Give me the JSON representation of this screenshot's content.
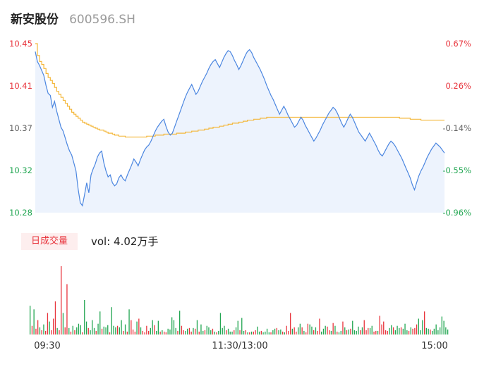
{
  "header": {
    "name": "新安股份",
    "code": "600596.SH"
  },
  "volume_panel": {
    "tab_label": "日成交量",
    "vol_text": "vol: 4.02万手"
  },
  "colors": {
    "up": "#e8343c",
    "down": "#22a652",
    "price_line": "#4b86e0",
    "avg_line": "#f4b73a",
    "area_fill": "#edf3fd",
    "neutral_label": "#666666"
  },
  "chart_data": [
    {
      "type": "line",
      "y_ticks": [
        10.45,
        10.41,
        10.37,
        10.32,
        10.28
      ],
      "pct_ticks": [
        "0.67%",
        "0.26%",
        "-0.14%",
        "-0.55%",
        "-0.96%"
      ],
      "ylim": [
        10.28,
        10.45
      ],
      "x_ticks": [
        "09:30",
        "11:30/13:00",
        "15:00"
      ],
      "series": [
        {
          "key": "price",
          "values": [
            10.442,
            10.432,
            10.428,
            10.423,
            10.418,
            10.408,
            10.4,
            10.398,
            10.386,
            10.392,
            10.382,
            10.374,
            10.366,
            10.362,
            10.355,
            10.348,
            10.342,
            10.338,
            10.33,
            10.322,
            10.304,
            10.29,
            10.287,
            10.298,
            10.31,
            10.3,
            10.318,
            10.324,
            10.329,
            10.336,
            10.34,
            10.342,
            10.33,
            10.322,
            10.316,
            10.318,
            10.31,
            10.307,
            10.309,
            10.315,
            10.318,
            10.314,
            10.312,
            10.318,
            10.323,
            10.328,
            10.334,
            10.331,
            10.327,
            10.333,
            10.338,
            10.343,
            10.346,
            10.348,
            10.352,
            10.357,
            10.362,
            10.366,
            10.369,
            10.372,
            10.374,
            10.367,
            10.361,
            10.358,
            10.36,
            10.366,
            10.372,
            10.378,
            10.384,
            10.39,
            10.396,
            10.401,
            10.405,
            10.409,
            10.404,
            10.399,
            10.402,
            10.407,
            10.412,
            10.416,
            10.42,
            10.425,
            10.429,
            10.432,
            10.434,
            10.43,
            10.426,
            10.431,
            10.436,
            10.44,
            10.443,
            10.442,
            10.438,
            10.433,
            10.429,
            10.424,
            10.428,
            10.433,
            10.438,
            10.442,
            10.444,
            10.441,
            10.436,
            10.432,
            10.428,
            10.424,
            10.419,
            10.414,
            10.408,
            10.403,
            10.398,
            10.394,
            10.389,
            10.384,
            10.379,
            10.383,
            10.387,
            10.383,
            10.378,
            10.374,
            10.37,
            10.366,
            10.368,
            10.372,
            10.376,
            10.373,
            10.368,
            10.364,
            10.36,
            10.356,
            10.352,
            10.355,
            10.359,
            10.363,
            10.368,
            10.372,
            10.376,
            10.38,
            10.383,
            10.386,
            10.384,
            10.38,
            10.375,
            10.37,
            10.366,
            10.37,
            10.375,
            10.379,
            10.376,
            10.371,
            10.366,
            10.361,
            10.358,
            10.355,
            10.352,
            10.356,
            10.36,
            10.356,
            10.352,
            10.348,
            10.343,
            10.339,
            10.337,
            10.341,
            10.345,
            10.349,
            10.352,
            10.35,
            10.347,
            10.343,
            10.339,
            10.335,
            10.33,
            10.325,
            10.32,
            10.315,
            10.308,
            10.303,
            10.31,
            10.317,
            10.322,
            10.326,
            10.331,
            10.336,
            10.34,
            10.344,
            10.347,
            10.35,
            10.348,
            10.346,
            10.343,
            10.34
          ],
          "color": "#4b86e0"
        },
        {
          "key": "avg",
          "values": [
            10.45,
            10.438,
            10.432,
            10.429,
            10.425,
            10.42,
            10.416,
            10.413,
            10.41,
            10.406,
            10.402,
            10.399,
            10.396,
            10.393,
            10.39,
            10.387,
            10.384,
            10.381,
            10.379,
            10.377,
            10.375,
            10.373,
            10.371,
            10.37,
            10.369,
            10.368,
            10.367,
            10.366,
            10.365,
            10.364,
            10.363,
            10.363,
            10.362,
            10.361,
            10.36,
            10.36,
            10.359,
            10.358,
            10.358,
            10.357,
            10.357,
            10.357,
            10.356,
            10.356,
            10.356,
            10.356,
            10.356,
            10.356,
            10.356,
            10.356,
            10.356,
            10.356,
            10.357,
            10.357,
            10.357,
            10.357,
            10.358,
            10.358,
            10.358,
            10.358,
            10.359,
            10.359,
            10.359,
            10.359,
            10.359,
            10.359,
            10.36,
            10.36,
            10.36,
            10.36,
            10.361,
            10.361,
            10.361,
            10.362,
            10.362,
            10.362,
            10.363,
            10.363,
            10.363,
            10.364,
            10.364,
            10.365,
            10.365,
            10.366,
            10.366,
            10.366,
            10.367,
            10.367,
            10.368,
            10.368,
            10.369,
            10.369,
            10.37,
            10.37,
            10.37,
            10.371,
            10.371,
            10.372,
            10.372,
            10.373,
            10.373,
            10.373,
            10.374,
            10.374,
            10.374,
            10.375,
            10.375,
            10.375,
            10.376,
            10.376,
            10.376,
            10.376,
            10.376,
            10.376,
            10.376,
            10.376,
            10.376,
            10.376,
            10.376,
            10.376,
            10.376,
            10.376,
            10.376,
            10.376,
            10.376,
            10.376,
            10.376,
            10.376,
            10.376,
            10.376,
            10.376,
            10.376,
            10.376,
            10.376,
            10.376,
            10.376,
            10.376,
            10.376,
            10.376,
            10.376,
            10.376,
            10.376,
            10.376,
            10.376,
            10.376,
            10.376,
            10.376,
            10.376,
            10.376,
            10.376,
            10.376,
            10.376,
            10.376,
            10.376,
            10.376,
            10.376,
            10.376,
            10.376,
            10.376,
            10.376,
            10.376,
            10.376,
            10.376,
            10.376,
            10.376,
            10.376,
            10.376,
            10.376,
            10.376,
            10.376,
            10.375,
            10.375,
            10.375,
            10.375,
            10.375,
            10.374,
            10.374,
            10.374,
            10.374,
            10.374,
            10.373,
            10.373,
            10.373,
            10.373,
            10.373,
            10.373,
            10.373,
            10.373,
            10.373,
            10.373,
            10.373,
            10.373
          ],
          "color": "#f4b73a"
        }
      ]
    },
    {
      "type": "bar",
      "volumes": [
        40,
        12,
        35,
        8,
        20,
        10,
        6,
        14,
        5,
        30,
        18,
        6,
        22,
        46,
        9,
        6,
        95,
        30,
        10,
        70,
        9,
        4,
        12,
        6,
        10,
        15,
        13,
        3,
        48,
        18,
        9,
        6,
        20,
        9,
        5,
        15,
        32,
        8,
        11,
        10,
        13,
        3,
        38,
        12,
        10,
        12,
        10,
        20,
        5,
        14,
        4,
        35,
        20,
        7,
        4,
        18,
        22,
        10,
        5,
        3,
        12,
        5,
        9,
        20,
        13,
        5,
        19,
        4,
        6,
        4,
        3,
        8,
        7,
        24,
        20,
        9,
        5,
        33,
        12,
        6,
        5,
        8,
        9,
        4,
        9,
        8,
        20,
        4,
        14,
        5,
        6,
        12,
        10,
        6,
        8,
        4,
        3,
        5,
        30,
        9,
        12,
        6,
        8,
        4,
        4,
        6,
        10,
        19,
        6,
        23,
        5,
        6,
        3,
        3,
        4,
        4,
        6,
        11,
        4,
        5,
        3,
        4,
        8,
        3,
        3,
        6,
        8,
        9,
        6,
        7,
        4,
        3,
        12,
        5,
        30,
        8,
        10,
        4,
        10,
        15,
        10,
        5,
        3,
        15,
        14,
        11,
        6,
        10,
        5,
        22,
        4,
        8,
        12,
        11,
        6,
        5,
        16,
        12,
        4,
        3,
        5,
        18,
        10,
        6,
        7,
        8,
        19,
        6,
        5,
        11,
        6,
        10,
        20,
        6,
        9,
        9,
        12,
        4,
        5,
        5,
        26,
        14,
        18,
        6,
        5,
        9,
        13,
        10,
        6,
        12,
        9,
        10,
        8,
        15,
        6,
        5,
        10,
        8,
        9,
        14,
        22,
        6,
        20,
        32,
        9,
        8,
        7,
        5,
        8,
        14,
        6,
        10,
        25,
        19,
        10,
        7
      ],
      "colors_up": [
        0,
        1,
        0,
        1,
        1,
        0,
        1,
        0,
        1,
        1,
        0,
        1,
        1,
        1,
        0,
        1,
        1,
        0,
        1,
        1,
        0,
        1,
        0,
        1,
        0,
        0,
        0,
        1,
        0,
        0,
        1,
        0,
        0,
        0,
        1,
        0,
        0,
        1,
        0,
        0,
        0,
        1,
        0,
        0,
        0,
        1,
        0,
        0,
        1,
        0,
        1,
        0,
        1,
        1,
        1,
        0,
        1,
        0,
        1,
        1,
        1,
        1,
        0,
        0,
        1,
        0,
        0,
        1,
        0,
        1,
        1,
        0,
        0,
        0,
        0,
        0,
        1,
        0,
        1,
        1,
        0,
        0,
        1,
        1,
        0,
        1,
        0,
        1,
        0,
        0,
        1,
        0,
        0,
        0,
        1,
        0,
        1,
        0,
        0,
        0,
        0,
        1,
        0,
        0,
        0,
        1,
        0,
        0,
        1,
        0,
        0,
        1,
        0,
        1,
        0,
        1,
        1,
        0,
        0,
        1,
        0,
        0,
        0,
        0,
        1,
        0,
        0,
        1,
        0,
        0,
        1,
        0,
        1,
        1,
        1,
        0,
        1,
        1,
        0,
        0,
        1,
        0,
        1,
        1,
        0,
        0,
        1,
        0,
        1,
        1,
        0,
        0,
        0,
        1,
        1,
        0,
        1,
        0,
        1,
        0,
        0,
        1,
        0,
        1,
        0,
        1,
        0,
        0,
        0,
        0,
        1,
        0,
        1,
        1,
        1,
        0,
        0,
        1,
        1,
        0,
        1,
        1,
        1,
        1,
        1,
        0,
        0,
        1,
        0,
        0,
        0,
        1,
        0,
        0,
        0,
        1,
        0,
        1,
        1,
        1,
        0,
        0,
        0,
        1,
        0,
        0,
        1,
        0,
        0,
        0,
        0,
        0,
        0,
        0,
        0,
        0
      ]
    }
  ]
}
